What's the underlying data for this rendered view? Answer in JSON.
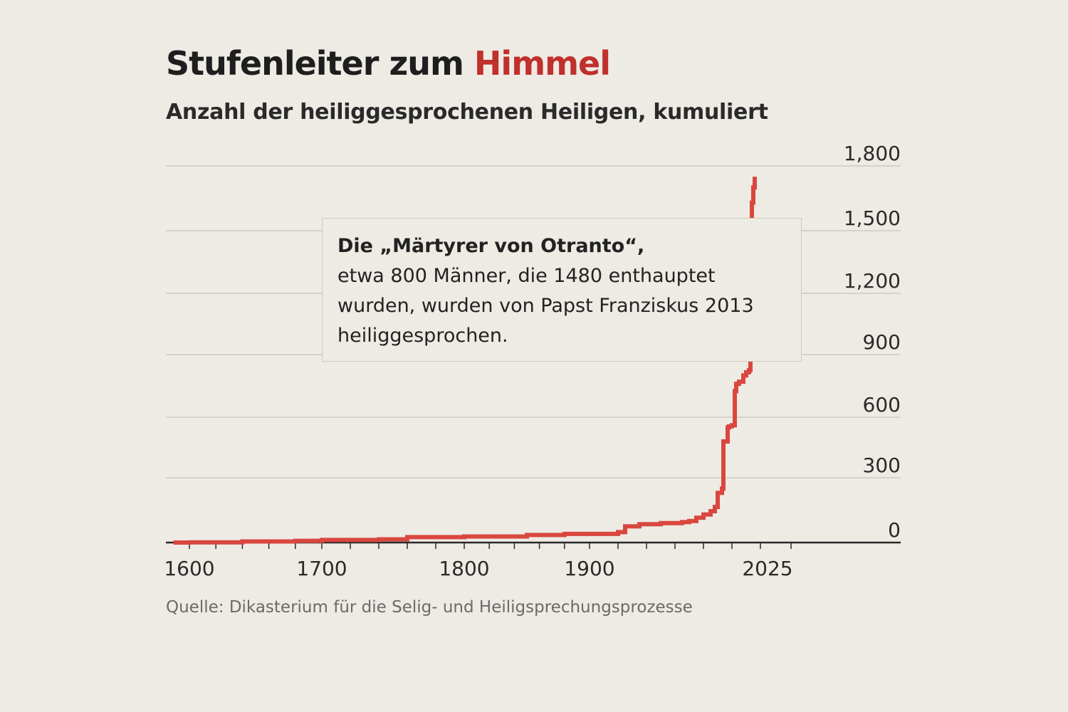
{
  "title": {
    "text": "Stufenleiter zum ",
    "accent": "Himmel"
  },
  "subtitle": "Anzahl der heiliggesprochenen Heiligen, kumuliert",
  "source": "Quelle: Dikasterium für die Selig- und Heiligsprechungsprozesse",
  "annotation": {
    "headline": "Die „Märtyrer von Otranto“,",
    "lines": [
      "etwa 800 Männer, die 1480 enthauptet",
      "wurden, wurden von Papst Franziskus 2013",
      "heiliggesprochen."
    ],
    "pointer_value": {
      "x": 2013,
      "y": 1400
    }
  },
  "colors": {
    "line": "#d9473f",
    "accent": "#c0302c",
    "grid": "#cfcac0",
    "axis": "#2a2a2a"
  },
  "chart_data": {
    "type": "line",
    "title": "Stufenleiter zum Himmel",
    "subtitle": "Anzahl der heiliggesprochenen Heiligen, kumuliert",
    "xlabel": "",
    "ylabel": "",
    "xlim": [
      1600,
      2025
    ],
    "ylim": [
      0,
      1800
    ],
    "x_ticks": [
      1600,
      1700,
      1800,
      1900,
      2025
    ],
    "y_ticks": [
      0,
      300,
      600,
      900,
      1200,
      1500,
      1800
    ],
    "y_tick_labels": [
      "0",
      "300",
      "600",
      "900",
      "1,200",
      "1,500",
      "1,800"
    ],
    "grid": "horizontal",
    "legend": "none",
    "series": [
      {
        "x": [
          1588,
          1600,
          1640,
          1680,
          1700,
          1740,
          1760,
          1800,
          1850,
          1880,
          1920,
          1925,
          1935,
          1950,
          1965,
          1970,
          1975,
          1980,
          1985,
          1988,
          1990,
          1993,
          1994,
          1997,
          1998,
          2000,
          2002,
          2003,
          2005,
          2008,
          2010,
          2012,
          2013,
          2014,
          2015,
          2016
        ],
        "y": [
          0,
          1,
          5,
          8,
          12,
          15,
          25,
          28,
          35,
          40,
          48,
          75,
          85,
          90,
          95,
          100,
          115,
          130,
          145,
          165,
          230,
          250,
          480,
          550,
          555,
          560,
          725,
          760,
          770,
          800,
          815,
          825,
          1400,
          1630,
          1700,
          1750
        ]
      }
    ]
  }
}
